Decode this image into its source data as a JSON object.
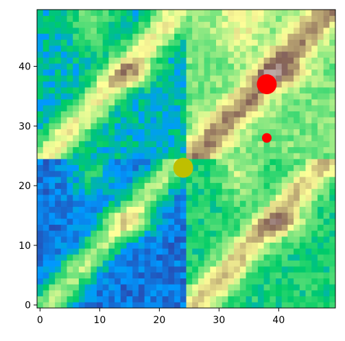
{
  "chart_data": {
    "type": "heatmap",
    "title": "",
    "xlabel": "",
    "ylabel": "",
    "xlim": [
      -0.5,
      49.5
    ],
    "ylim": [
      -0.5,
      49.5
    ],
    "grid": false,
    "colormap": "terrain",
    "x_ticks": [
      0,
      10,
      20,
      30,
      40
    ],
    "x_tick_labels": [
      "0",
      "10",
      "20",
      "30",
      "40"
    ],
    "y_ticks": [
      0,
      10,
      20,
      30,
      40
    ],
    "y_tick_labels": [
      "0",
      "10",
      "20",
      "30",
      "40"
    ],
    "grid_size": [
      50,
      50
    ],
    "quadrant_split": [
      24.5,
      24.5
    ],
    "quadrant_offsets": {
      "bottom_left": 0.0,
      "bottom_right": 0.17,
      "top_left": 0.1,
      "top_right": 0.27
    },
    "markers": [
      {
        "x": 38,
        "y": 37,
        "size": "large",
        "color": "#ff0000"
      },
      {
        "x": 38,
        "y": 28,
        "size": "small",
        "color": "#ff0000"
      },
      {
        "x": 24,
        "y": 23,
        "size": "large",
        "color": "#bfbf00"
      }
    ]
  }
}
